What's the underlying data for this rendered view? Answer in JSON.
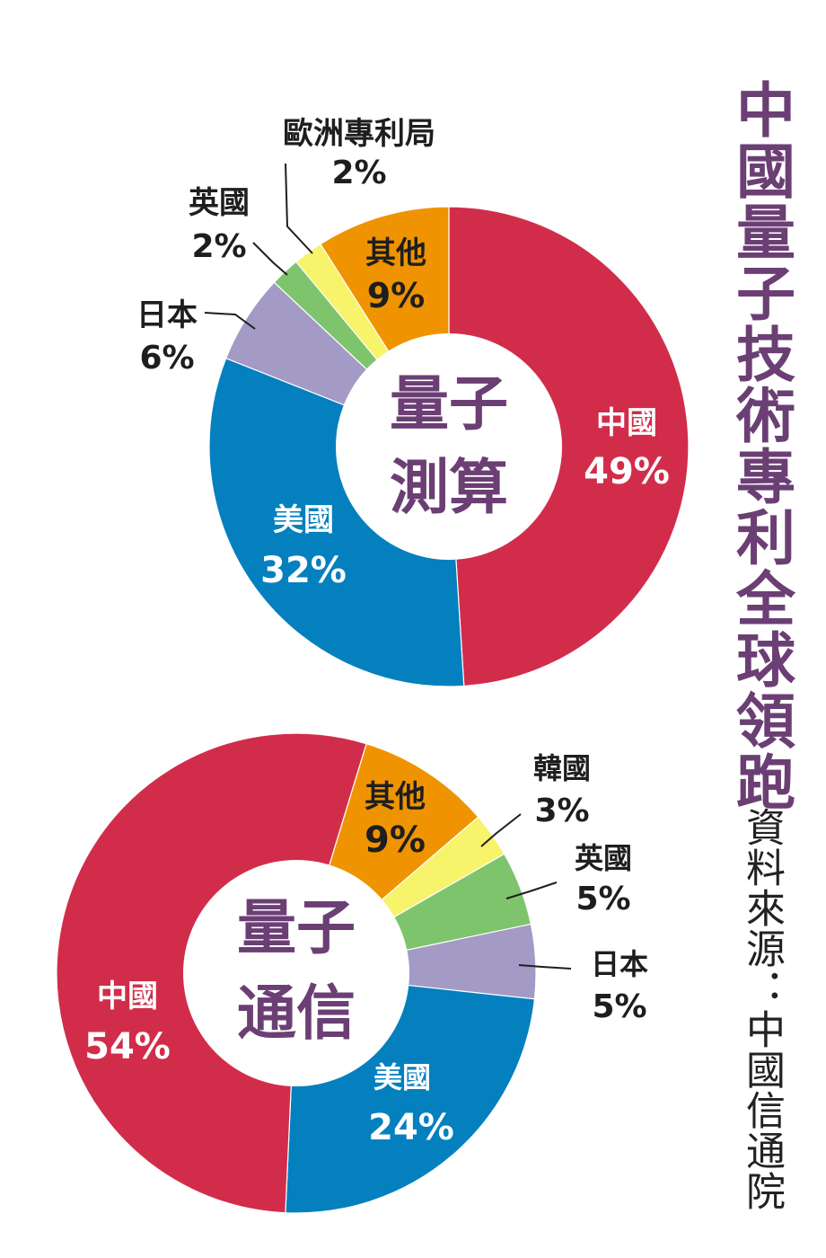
{
  "title": "中國量子技術專利全球領跑",
  "source": "資料來源：中國信通院",
  "chart_data": [
    {
      "type": "pie",
      "center_label": [
        "量子",
        "測算"
      ],
      "slices": [
        {
          "label": "中國",
          "value": 49,
          "value_text": "49%",
          "color": "#d12d4b",
          "label_style": "inside"
        },
        {
          "label": "美國",
          "value": 32,
          "value_text": "32%",
          "color": "#0480bf",
          "label_style": "inside"
        },
        {
          "label": "日本",
          "value": 6,
          "value_text": "6%",
          "color": "#a39ac6",
          "label_style": "outside"
        },
        {
          "label": "英國",
          "value": 2,
          "value_text": "2%",
          "color": "#7ec46c",
          "label_style": "outside"
        },
        {
          "label": "歐洲專利局",
          "value": 2,
          "value_text": "2%",
          "color": "#f7f36a",
          "label_style": "outside"
        },
        {
          "label": "其他",
          "value": 9,
          "value_text": "9%",
          "color": "#ef9400",
          "label_style": "inside-dark"
        }
      ]
    },
    {
      "type": "pie",
      "center_label": [
        "量子",
        "通信"
      ],
      "slices": [
        {
          "label": "其他",
          "value": 9,
          "value_text": "9%",
          "color": "#ef9400",
          "label_style": "inside-dark"
        },
        {
          "label": "韓國",
          "value": 3,
          "value_text": "3%",
          "color": "#f7f36a",
          "label_style": "outside"
        },
        {
          "label": "英國",
          "value": 5,
          "value_text": "5%",
          "color": "#7ec46c",
          "label_style": "outside"
        },
        {
          "label": "日本",
          "value": 5,
          "value_text": "5%",
          "color": "#a39ac6",
          "label_style": "outside"
        },
        {
          "label": "美國",
          "value": 24,
          "value_text": "24%",
          "color": "#0480bf",
          "label_style": "inside"
        },
        {
          "label": "中國",
          "value": 54,
          "value_text": "54%",
          "color": "#d12d4b",
          "label_style": "inside"
        }
      ]
    }
  ]
}
